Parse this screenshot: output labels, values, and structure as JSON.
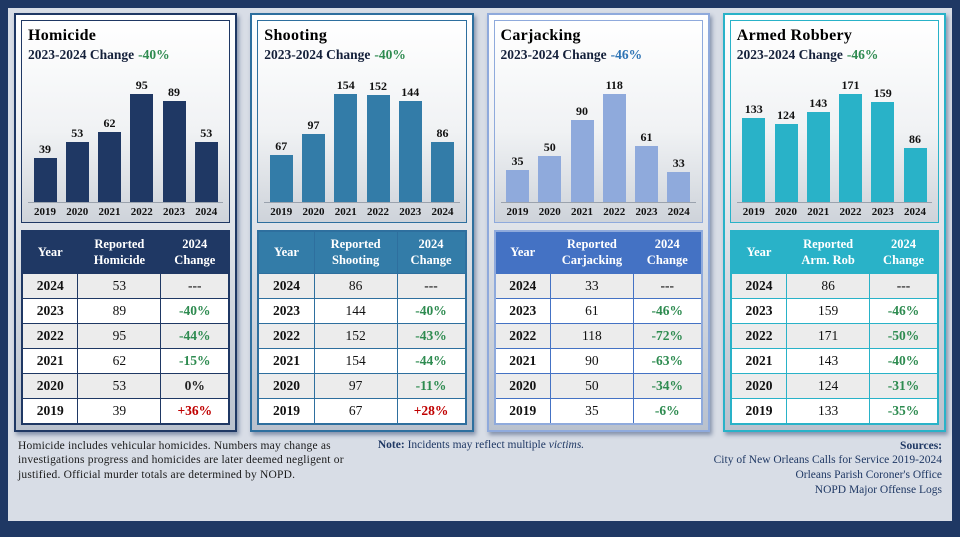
{
  "page": {
    "background": "#d8dde6",
    "frame_color": "#1f3864"
  },
  "chart_data": [
    {
      "type": "bar",
      "title": "Homicide",
      "categories": [
        "2019",
        "2020",
        "2021",
        "2022",
        "2023",
        "2024"
      ],
      "values": [
        39,
        53,
        62,
        95,
        89,
        53
      ],
      "ylim": [
        0,
        95
      ],
      "bar_color": "#1f3864",
      "data_labels": true,
      "legend": "none",
      "grid": false
    },
    {
      "type": "bar",
      "title": "Shooting",
      "categories": [
        "2019",
        "2020",
        "2021",
        "2022",
        "2023",
        "2024"
      ],
      "values": [
        67,
        97,
        154,
        152,
        144,
        86
      ],
      "ylim": [
        0,
        154
      ],
      "bar_color": "#337ca8",
      "data_labels": true,
      "legend": "none",
      "grid": false
    },
    {
      "type": "bar",
      "title": "Carjacking",
      "categories": [
        "2019",
        "2020",
        "2021",
        "2022",
        "2023",
        "2024"
      ],
      "values": [
        35,
        50,
        90,
        118,
        61,
        33
      ],
      "ylim": [
        0,
        118
      ],
      "bar_color": "#8faadc",
      "data_labels": true,
      "legend": "none",
      "grid": false
    },
    {
      "type": "bar",
      "title": "Armed Robbery",
      "categories": [
        "2019",
        "2020",
        "2021",
        "2022",
        "2023",
        "2024"
      ],
      "values": [
        133,
        124,
        143,
        171,
        159,
        86
      ],
      "ylim": [
        0,
        171
      ],
      "bar_color": "#29b2c8",
      "data_labels": true,
      "legend": "none",
      "grid": false
    }
  ],
  "panels": [
    {
      "title": "Homicide",
      "change_label": "2023-2024 Change",
      "change_value": "-40%",
      "change_color": "#2e8b50",
      "theme": {
        "panel_border": "#1f3864",
        "header_bg": "#1f3864",
        "grid": "#1f3864"
      },
      "table": {
        "headers": [
          "Year",
          "Reported Homicide",
          "2024 Change"
        ],
        "rows": [
          {
            "year": "2024",
            "count": "53",
            "change": "---",
            "color": "#222222"
          },
          {
            "year": "2023",
            "count": "89",
            "change": "-40%",
            "color": "#2e8b50"
          },
          {
            "year": "2022",
            "count": "95",
            "change": "-44%",
            "color": "#2e8b50"
          },
          {
            "year": "2021",
            "count": "62",
            "change": "-15%",
            "color": "#2e8b50"
          },
          {
            "year": "2020",
            "count": "53",
            "change": "0%",
            "color": "#222222"
          },
          {
            "year": "2019",
            "count": "39",
            "change": "+36%",
            "color": "#c00000"
          }
        ]
      }
    },
    {
      "title": "Shooting",
      "change_label": "2023-2024 Change",
      "change_value": "-40%",
      "change_color": "#2e8b50",
      "theme": {
        "panel_border": "#2e6f9e",
        "header_bg": "#337ca8",
        "grid": "#2e6f9e"
      },
      "table": {
        "headers": [
          "Year",
          "Reported Shooting",
          "2024 Change"
        ],
        "rows": [
          {
            "year": "2024",
            "count": "86",
            "change": "---",
            "color": "#222222"
          },
          {
            "year": "2023",
            "count": "144",
            "change": "-40%",
            "color": "#2e8b50"
          },
          {
            "year": "2022",
            "count": "152",
            "change": "-43%",
            "color": "#2e8b50"
          },
          {
            "year": "2021",
            "count": "154",
            "change": "-44%",
            "color": "#2e8b50"
          },
          {
            "year": "2020",
            "count": "97",
            "change": "-11%",
            "color": "#2e8b50"
          },
          {
            "year": "2019",
            "count": "67",
            "change": "+28%",
            "color": "#c00000"
          }
        ]
      }
    },
    {
      "title": "Carjacking",
      "change_label": "2023-2024 Change",
      "change_value": "-46%",
      "change_color": "#2e74b5",
      "theme": {
        "panel_border": "#8faadc",
        "header_bg": "#4472c4",
        "grid": "#4472c4"
      },
      "table": {
        "headers": [
          "Year",
          "Reported Carjacking",
          "2024 Change"
        ],
        "rows": [
          {
            "year": "2024",
            "count": "33",
            "change": "---",
            "color": "#222222"
          },
          {
            "year": "2023",
            "count": "61",
            "change": "-46%",
            "color": "#2e8b50"
          },
          {
            "year": "2022",
            "count": "118",
            "change": "-72%",
            "color": "#2e8b50"
          },
          {
            "year": "2021",
            "count": "90",
            "change": "-63%",
            "color": "#2e8b50"
          },
          {
            "year": "2020",
            "count": "50",
            "change": "-34%",
            "color": "#2e8b50"
          },
          {
            "year": "2019",
            "count": "35",
            "change": "-6%",
            "color": "#2e8b50"
          }
        ]
      }
    },
    {
      "title": "Armed Robbery",
      "change_label": "2023-2024 Change",
      "change_value": "-46%",
      "change_color": "#2e8b50",
      "theme": {
        "panel_border": "#29b2c8",
        "header_bg": "#29b2c8",
        "grid": "#29b2c8"
      },
      "table": {
        "headers": [
          "Year",
          "Reported Arm. Rob",
          "2024 Change"
        ],
        "rows": [
          {
            "year": "2024",
            "count": "86",
            "change": "---",
            "color": "#222222"
          },
          {
            "year": "2023",
            "count": "159",
            "change": "-46%",
            "color": "#2e8b50"
          },
          {
            "year": "2022",
            "count": "171",
            "change": "-50%",
            "color": "#2e8b50"
          },
          {
            "year": "2021",
            "count": "143",
            "change": "-40%",
            "color": "#2e8b50"
          },
          {
            "year": "2020",
            "count": "124",
            "change": "-31%",
            "color": "#2e8b50"
          },
          {
            "year": "2019",
            "count": "133",
            "change": "-35%",
            "color": "#2e8b50"
          }
        ]
      }
    }
  ],
  "footer": {
    "disclaimer": "Homicide includes vehicular homicides. Numbers may change as investigations progress and homicides are later deemed negligent or justified. Official murder totals are determined by NOPD.",
    "note_label": "Note:",
    "note_text": "Incidents may reflect multiple",
    "note_italic": "victims.",
    "sources_label": "Sources:",
    "sources_lines": [
      "City of New Orleans Calls for Service 2019-2024",
      "Orleans Parish Coroner's Office",
      "NOPD Major Offense Logs"
    ]
  }
}
